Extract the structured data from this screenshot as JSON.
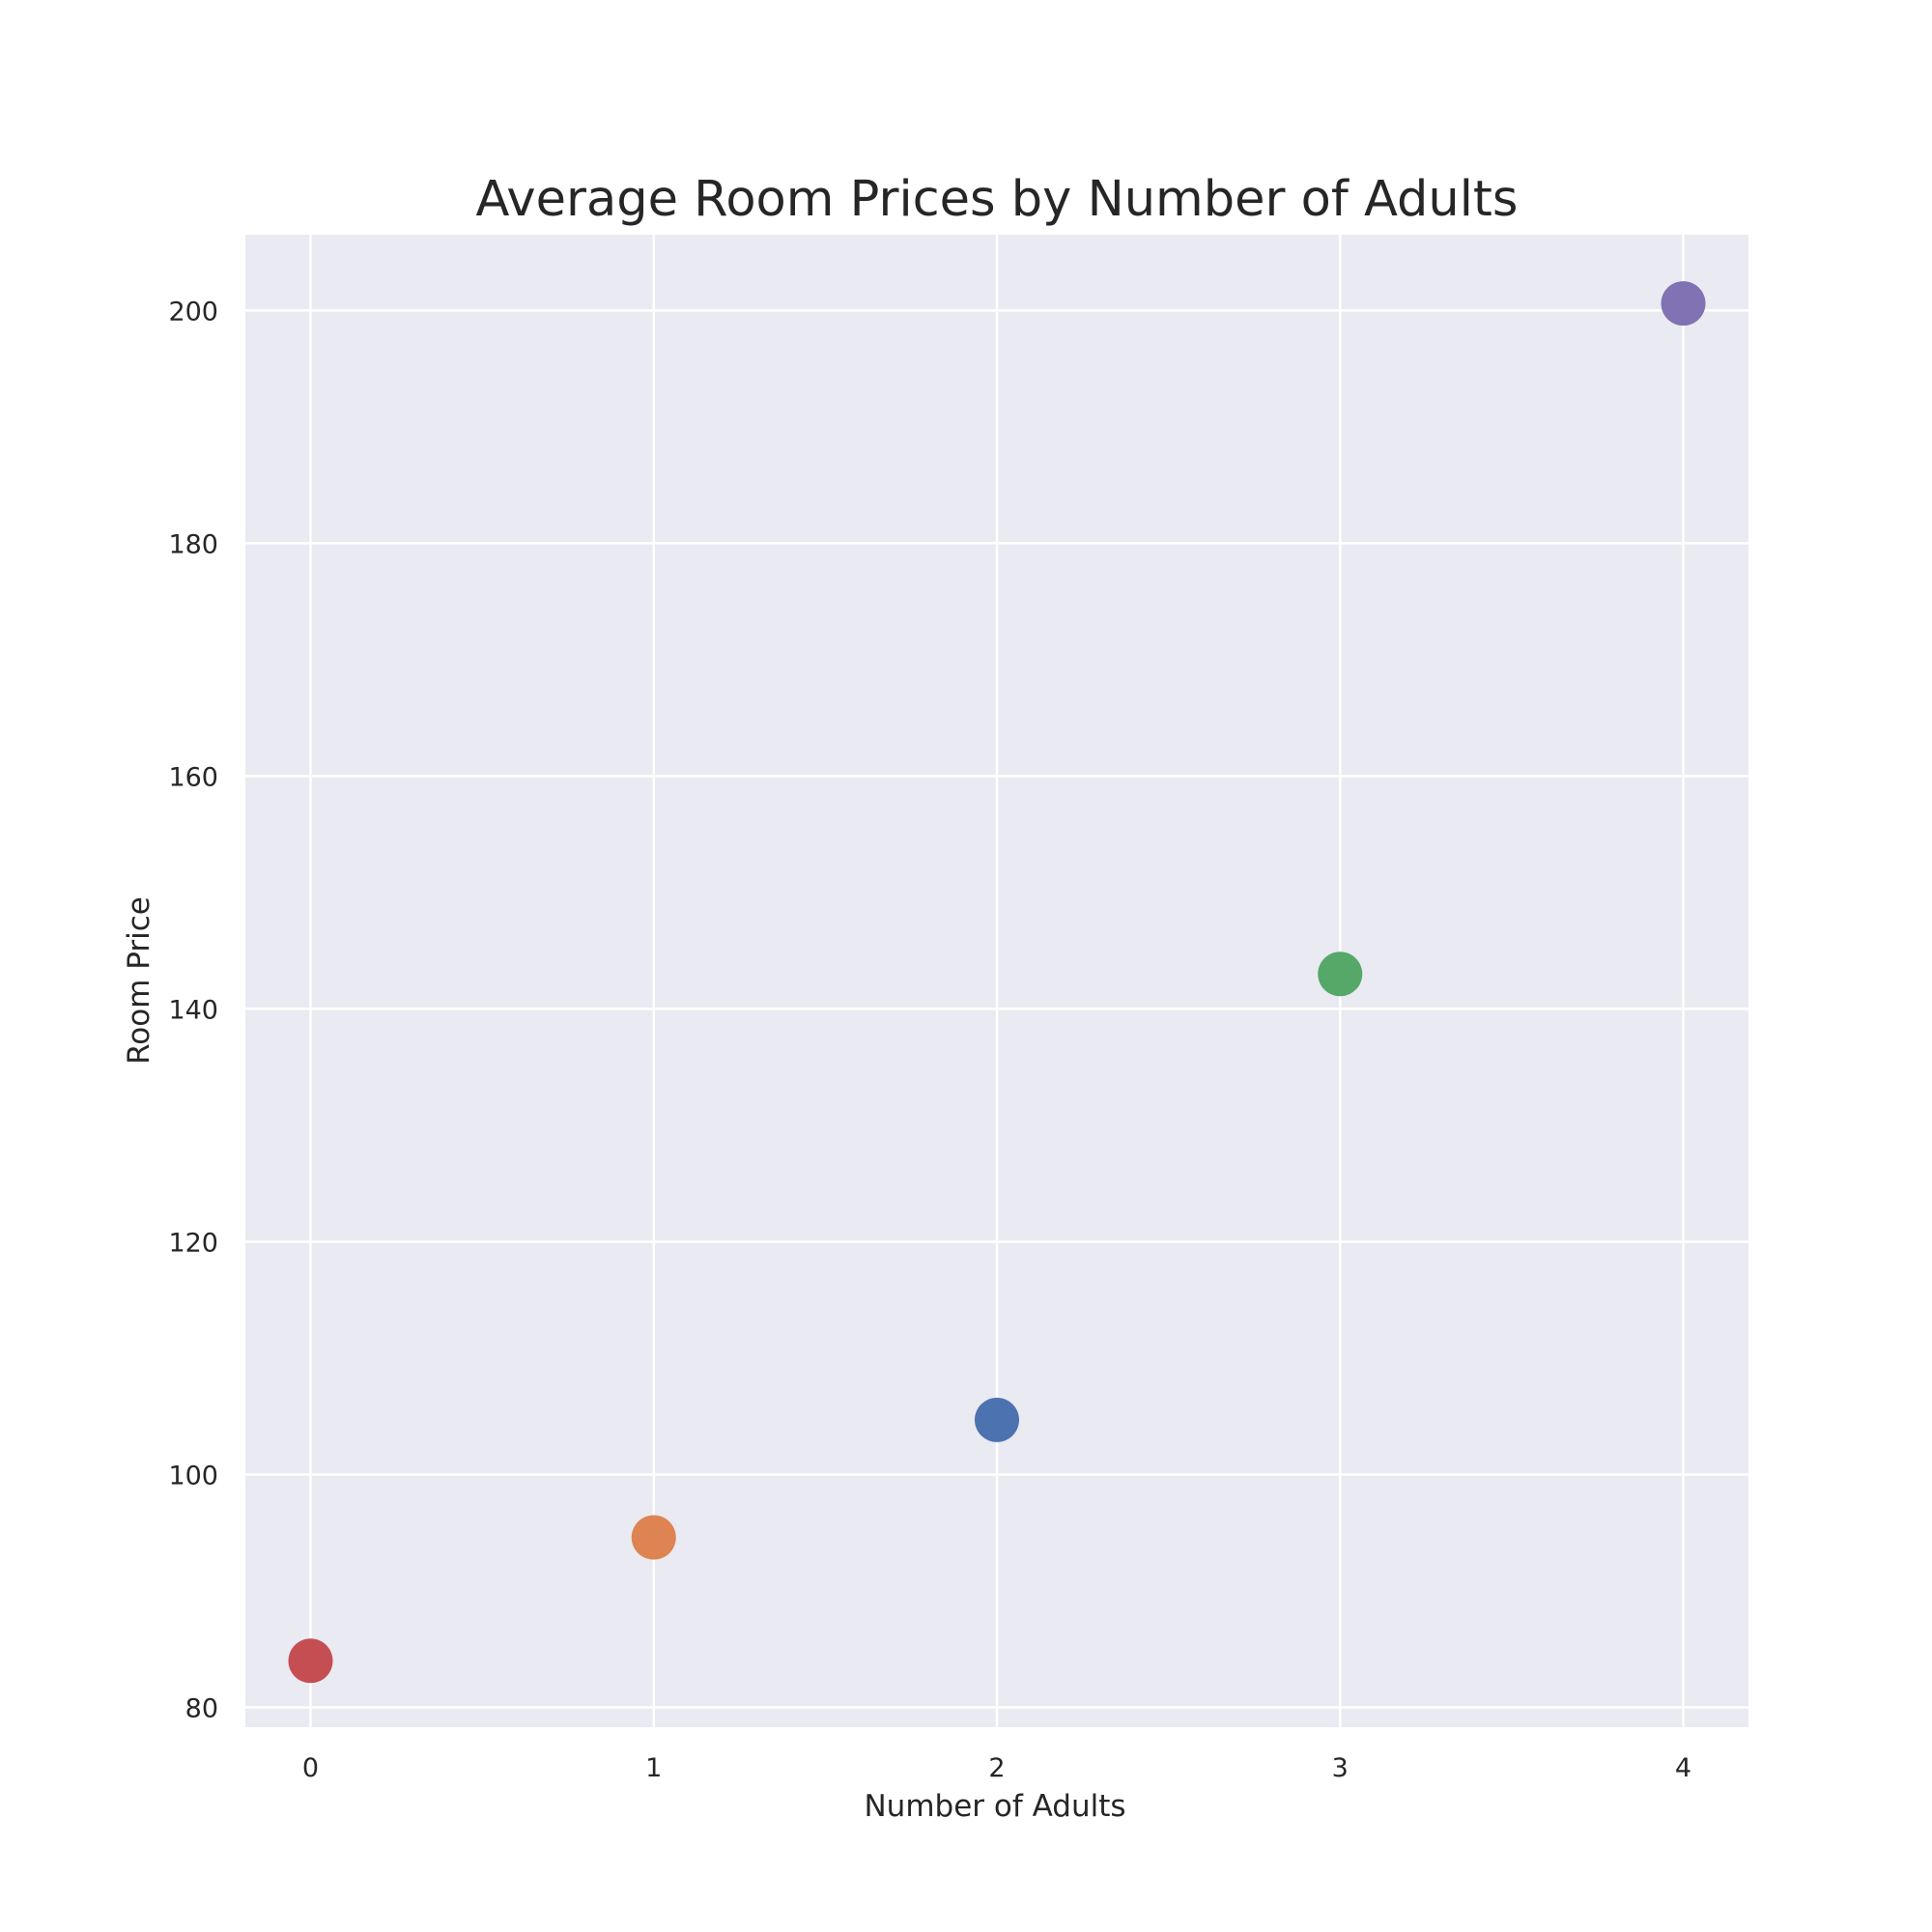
{
  "chart_data": {
    "type": "scatter",
    "title": "Average Room Prices by Number of Adults",
    "xlabel": "Number of Adults",
    "ylabel": "Room Price",
    "xlim": [
      -0.19,
      4.19
    ],
    "ylim": [
      78.3,
      206.5
    ],
    "x_ticks": [
      "0",
      "1",
      "2",
      "3",
      "4"
    ],
    "y_ticks": [
      "80",
      "100",
      "120",
      "140",
      "160",
      "180",
      "200"
    ],
    "grid": true,
    "legend": false,
    "points": [
      {
        "x": 0,
        "y": 84.0,
        "color": "#C44E52"
      },
      {
        "x": 1,
        "y": 94.6,
        "color": "#DD8452"
      },
      {
        "x": 2,
        "y": 104.7,
        "color": "#4C72B0"
      },
      {
        "x": 3,
        "y": 143.0,
        "color": "#55A868"
      },
      {
        "x": 4,
        "y": 200.6,
        "color": "#8172B3"
      }
    ],
    "colors": {
      "plot_background": "#EAEAF2",
      "grid": "#FFFFFF",
      "text": "#262626"
    }
  }
}
